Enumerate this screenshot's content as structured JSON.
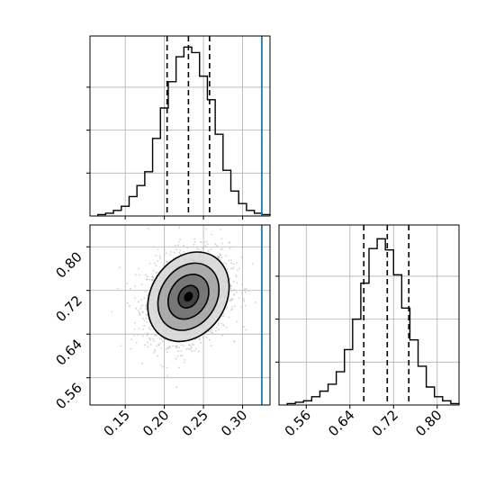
{
  "chart_data": [
    {
      "type": "histogram",
      "panel": "top-left",
      "variable": "x",
      "xlim": [
        0.105,
        0.335
      ],
      "grid": true,
      "quantile_lines": [
        0.2035,
        0.2308,
        0.2578
      ],
      "truth_line": 0.3245,
      "bin_edges": [
        0.115,
        0.125,
        0.135,
        0.145,
        0.155,
        0.165,
        0.175,
        0.185,
        0.195,
        0.205,
        0.215,
        0.225,
        0.235,
        0.245,
        0.255,
        0.265,
        0.275,
        0.285,
        0.295,
        0.305,
        0.315,
        0.325,
        0.335
      ],
      "counts": [
        1,
        2,
        4,
        7,
        14,
        22,
        32,
        56,
        78,
        97,
        115,
        122,
        118,
        101,
        84,
        59,
        33,
        18,
        9,
        4,
        2,
        1
      ],
      "ylim": [
        0,
        130
      ]
    },
    {
      "type": "scatter",
      "panel": "bottom-left",
      "subtype": "2d-density-contour",
      "x_variable": "x",
      "y_variable": "y",
      "xlim": [
        0.105,
        0.335
      ],
      "ylim": [
        0.51,
        0.84
      ],
      "x_ticks": [
        "0.15",
        "0.20",
        "0.25",
        "0.30"
      ],
      "y_ticks": [
        "0.56",
        "0.64",
        "0.72",
        "0.80"
      ],
      "grid": true,
      "truth_line_x": 0.3245,
      "mean": [
        0.2308,
        0.7085
      ],
      "std": [
        0.026,
        0.041
      ],
      "correlation": 0.22,
      "contour_levels_sigma": [
        0.5,
        1.0,
        1.5,
        2.0
      ]
    },
    {
      "type": "histogram",
      "panel": "bottom-right",
      "variable": "y",
      "xlim": [
        0.51,
        0.84
      ],
      "x_ticks": [
        "0.56",
        "0.64",
        "0.72",
        "0.80"
      ],
      "grid": true,
      "quantile_lines": [
        0.6655,
        0.7085,
        0.748
      ],
      "bin_edges": [
        0.525,
        0.54,
        0.555,
        0.57,
        0.585,
        0.6,
        0.615,
        0.63,
        0.645,
        0.66,
        0.675,
        0.69,
        0.705,
        0.72,
        0.735,
        0.75,
        0.765,
        0.78,
        0.795,
        0.81,
        0.825,
        0.84
      ],
      "counts": [
        1,
        2,
        3,
        6,
        10,
        15,
        24,
        40,
        62,
        88,
        113,
        120,
        112,
        94,
        70,
        47,
        28,
        13,
        6,
        3,
        1
      ],
      "ylim": [
        0,
        130
      ]
    }
  ],
  "colors": {
    "histogram_line": "#000000",
    "quantile_line": "#000000",
    "truth_line": "#1f77b4",
    "grid": "#b0b0b0",
    "scatter_points": "#bdbdbd",
    "contour_fill_levels": [
      "#3a3a3a",
      "#6e6e6e",
      "#a2a2a2",
      "#d6d6d6"
    ],
    "contour_line": "#000000"
  }
}
